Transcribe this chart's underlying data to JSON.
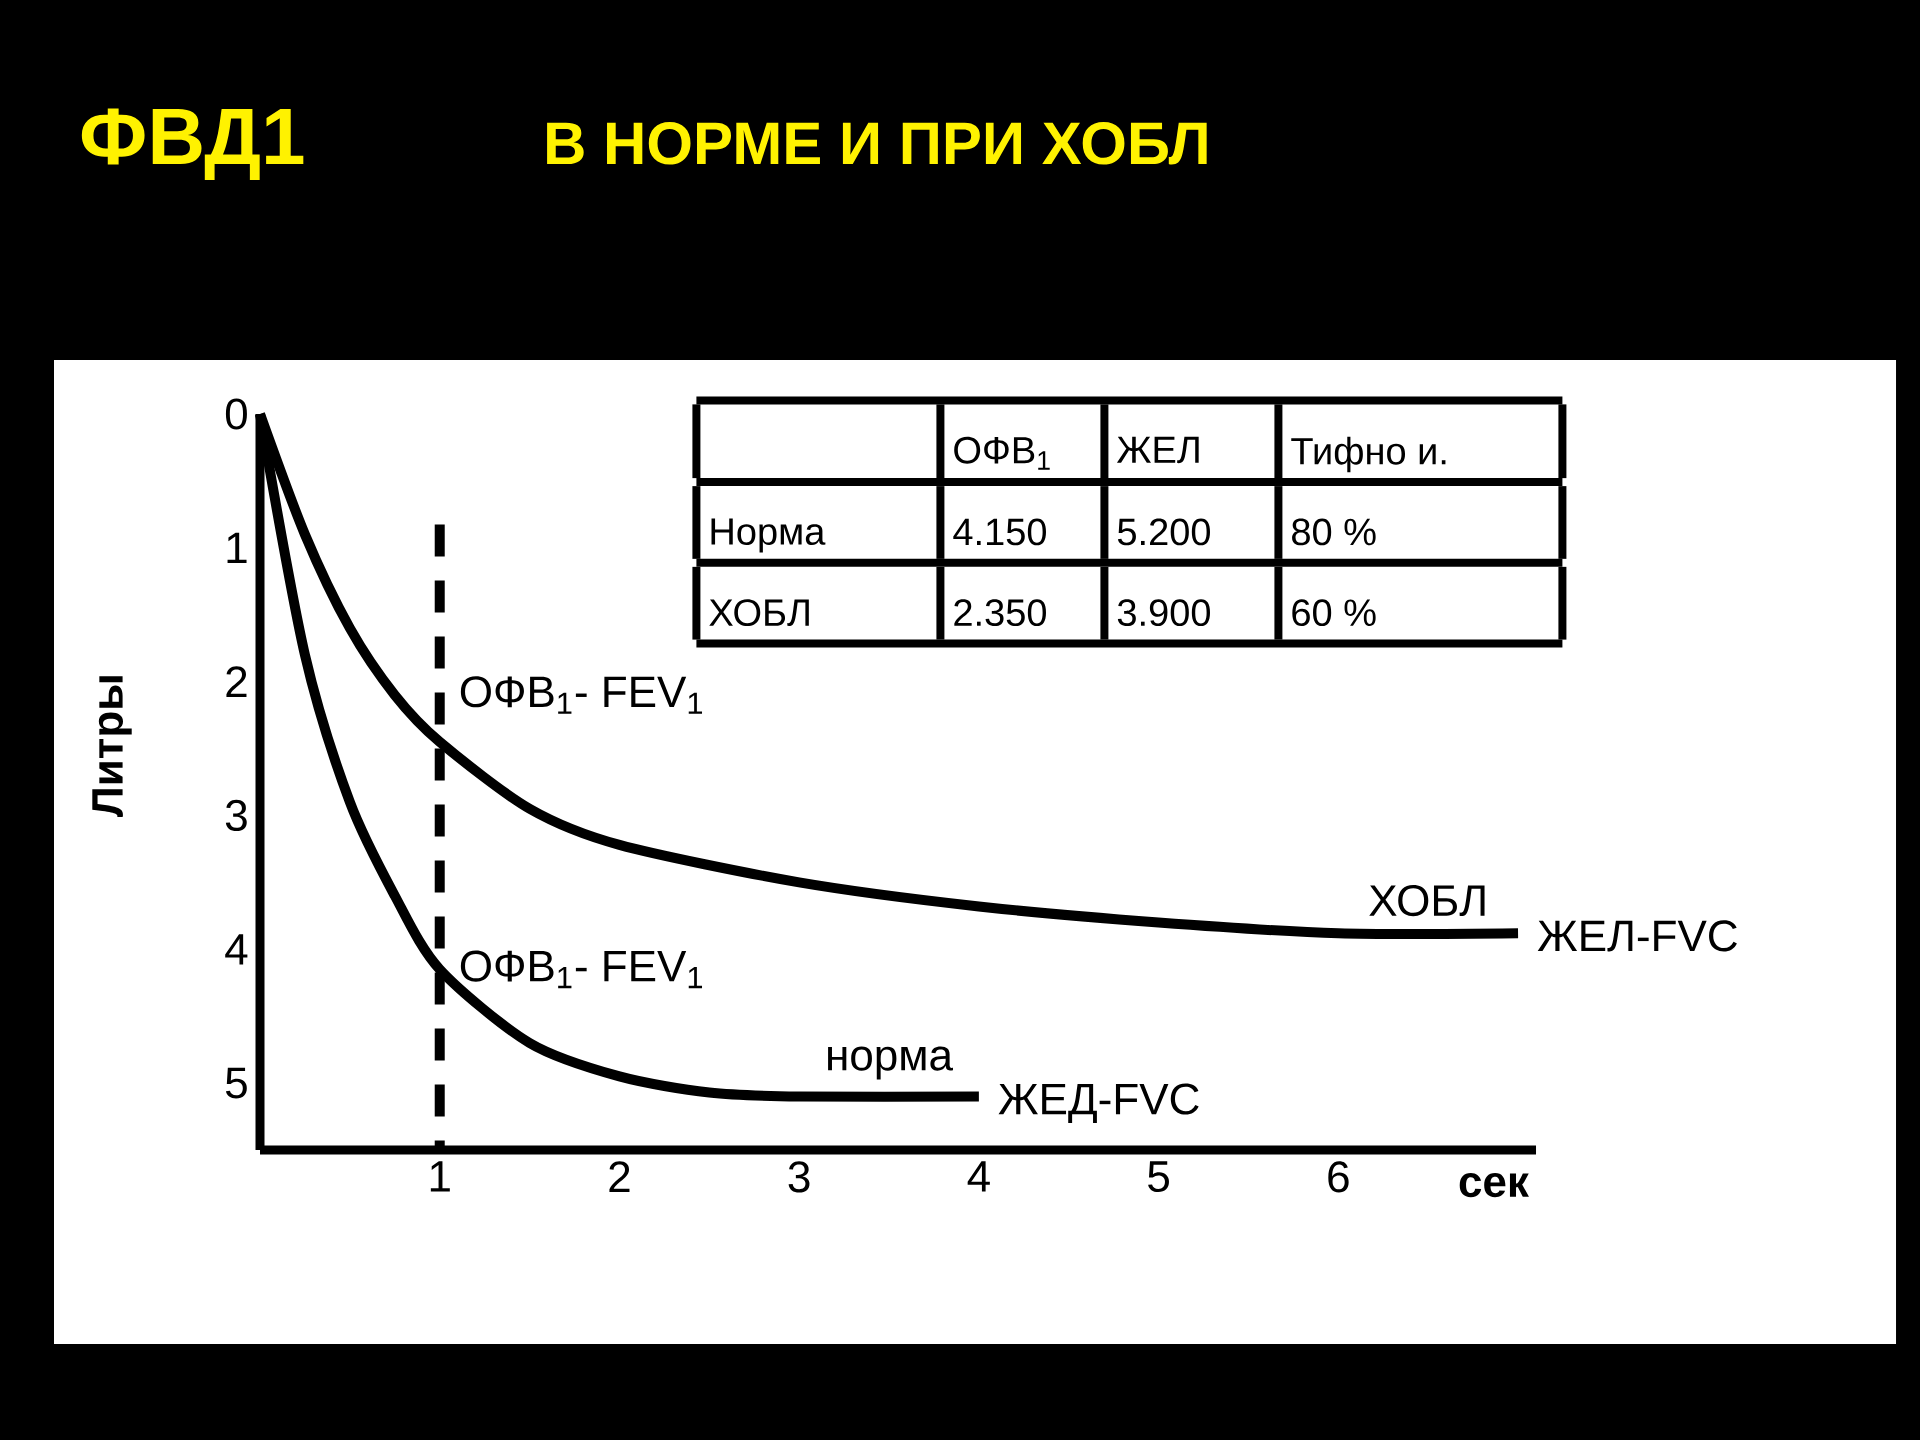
{
  "chart_data": {
    "type": "line",
    "title": "ФВД1",
    "subtitle": "В НОРМЕ И ПРИ ХОБЛ",
    "xlabel": "сек",
    "ylabel": "Литры",
    "series": [
      {
        "name": "норма",
        "color": "#000000",
        "x": [
          0,
          0.25,
          0.5,
          0.75,
          1,
          1.5,
          2,
          2.5,
          3,
          4
        ],
        "values": [
          0,
          1.8,
          2.9,
          3.6,
          4.15,
          4.7,
          4.95,
          5.07,
          5.1,
          5.1
        ]
      },
      {
        "name": "ХОБЛ",
        "color": "#000000",
        "x": [
          0,
          0.25,
          0.5,
          0.75,
          1,
          1.5,
          2,
          3,
          4,
          5,
          6,
          7
        ],
        "values": [
          0,
          0.9,
          1.6,
          2.1,
          2.45,
          2.95,
          3.22,
          3.5,
          3.68,
          3.8,
          3.88,
          3.88
        ]
      }
    ],
    "xlim": [
      0,
      7.1
    ],
    "xticks": [
      1,
      2,
      3,
      4,
      5,
      6
    ],
    "ylim": [
      5.5,
      0
    ],
    "yticks": [
      0,
      1,
      2,
      3,
      4,
      5
    ],
    "ref_lines": [
      {
        "axis": "x",
        "value": 1,
        "color": "#000000",
        "line_style": "dashed"
      }
    ],
    "annotations": [
      "ОФВ$_{1}$",
      "ЖЕЛ",
      "Тифно и.",
      "Норма",
      "4.150",
      "5.200",
      "80 %",
      "ХОБЛ",
      "2.350",
      "3.900",
      "60 %",
      {
        "text": "ОФВ$_{1}$- FEV$_{1}$",
        "x": 1,
        "y": 2.1
      },
      {
        "text": "ОФВ$_{1}$- FEV$_{1}$",
        "x": 1,
        "y": 4.15
      },
      {
        "text": "ЖЕД-FVC",
        "x": 4,
        "y": 5.15
      },
      {
        "text": "ЖЕЛ-FVC",
        "x": 7,
        "y": 3.9
      }
    ],
    "marker": "none",
    "line_style": "solid",
    "grid": false
  }
}
